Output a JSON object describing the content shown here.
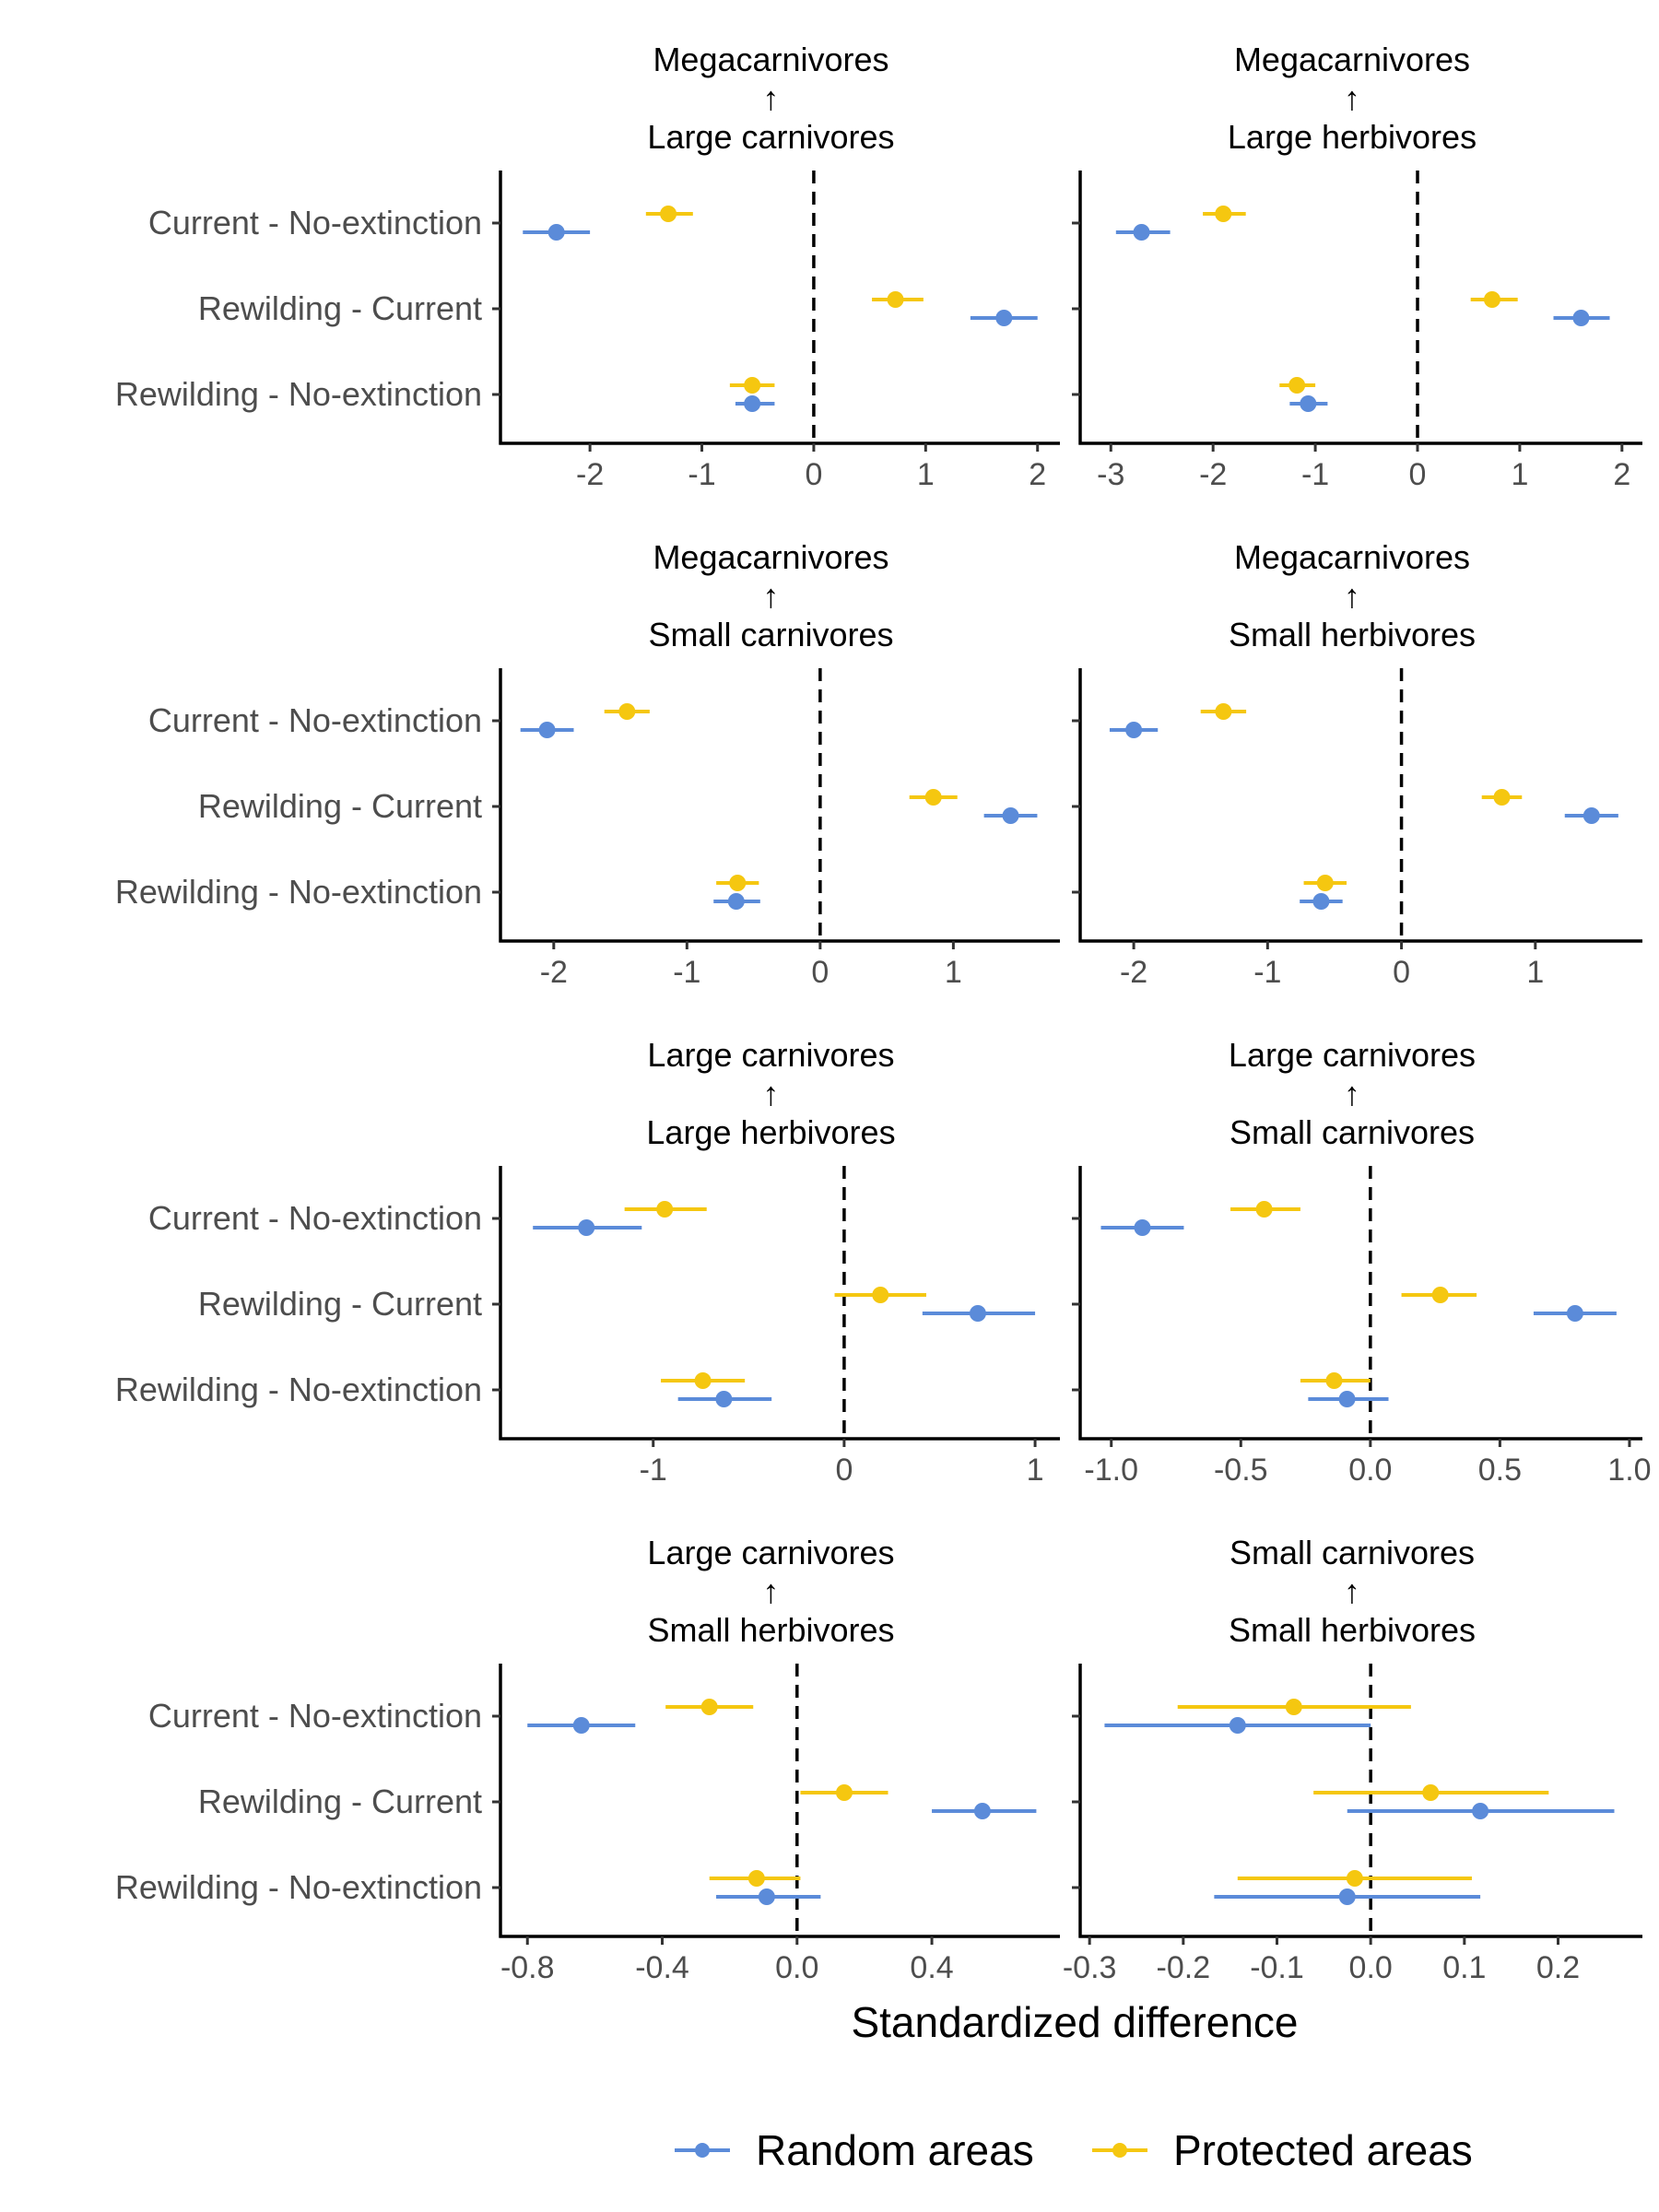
{
  "chart_data": [
    {
      "type": "scatter",
      "title_top": "Megacarnivores",
      "title_arrow": "↑",
      "title_bottom": "Large carnivores",
      "categories": [
        "Current - No-extinction",
        "Rewilding - Current",
        "Rewilding - No-extinction"
      ],
      "xlim": [
        -2.8,
        2.2
      ],
      "xticks": [
        -2,
        -1,
        0,
        1,
        2
      ],
      "series": [
        {
          "name": "Random areas",
          "estimates": [
            -2.3,
            1.7,
            -0.55
          ],
          "ci_low": [
            -2.6,
            1.4,
            -0.7
          ],
          "ci_high": [
            -2.0,
            2.0,
            -0.35
          ]
        },
        {
          "name": "Protected areas",
          "estimates": [
            -1.3,
            0.73,
            -0.55
          ],
          "ci_low": [
            -1.5,
            0.52,
            -0.75
          ],
          "ci_high": [
            -1.08,
            0.98,
            -0.35
          ]
        }
      ]
    },
    {
      "type": "scatter",
      "title_top": "Megacarnivores",
      "title_arrow": "↑",
      "title_bottom": "Large herbivores",
      "categories": [
        "Current - No-extinction",
        "Rewilding - Current",
        "Rewilding - No-extinction"
      ],
      "xlim": [
        -3.3,
        2.2
      ],
      "xticks": [
        -3,
        -2,
        -1,
        0,
        1,
        2
      ],
      "series": [
        {
          "name": "Random areas",
          "estimates": [
            -2.7,
            1.6,
            -1.07
          ],
          "ci_low": [
            -2.95,
            1.33,
            -1.25
          ],
          "ci_high": [
            -2.42,
            1.88,
            -0.88
          ]
        },
        {
          "name": "Protected areas",
          "estimates": [
            -1.9,
            0.73,
            -1.18
          ],
          "ci_low": [
            -2.1,
            0.52,
            -1.35
          ],
          "ci_high": [
            -1.68,
            0.98,
            -1.0
          ]
        }
      ]
    },
    {
      "type": "scatter",
      "title_top": "Megacarnivores",
      "title_arrow": "↑",
      "title_bottom": "Small carnivores",
      "categories": [
        "Current - No-extinction",
        "Rewilding - Current",
        "Rewilding - No-extinction"
      ],
      "xlim": [
        -2.4,
        1.8
      ],
      "xticks": [
        -2,
        -1,
        0,
        1
      ],
      "series": [
        {
          "name": "Random areas",
          "estimates": [
            -2.05,
            1.43,
            -0.63
          ],
          "ci_low": [
            -2.25,
            1.23,
            -0.8
          ],
          "ci_high": [
            -1.85,
            1.63,
            -0.45
          ]
        },
        {
          "name": "Protected areas",
          "estimates": [
            -1.45,
            0.85,
            -0.62
          ],
          "ci_low": [
            -1.62,
            0.67,
            -0.78
          ],
          "ci_high": [
            -1.28,
            1.03,
            -0.46
          ]
        }
      ]
    },
    {
      "type": "scatter",
      "title_top": "Megacarnivores",
      "title_arrow": "↑",
      "title_bottom": "Small herbivores",
      "categories": [
        "Current - No-extinction",
        "Rewilding - Current",
        "Rewilding - No-extinction"
      ],
      "xlim": [
        -2.4,
        1.8
      ],
      "xticks": [
        -2,
        -1,
        0,
        1
      ],
      "series": [
        {
          "name": "Random areas",
          "estimates": [
            -2.0,
            1.42,
            -0.6
          ],
          "ci_low": [
            -2.18,
            1.22,
            -0.76
          ],
          "ci_high": [
            -1.82,
            1.62,
            -0.44
          ]
        },
        {
          "name": "Protected areas",
          "estimates": [
            -1.33,
            0.75,
            -0.57
          ],
          "ci_low": [
            -1.5,
            0.6,
            -0.73
          ],
          "ci_high": [
            -1.16,
            0.9,
            -0.41
          ]
        }
      ]
    },
    {
      "type": "scatter",
      "title_top": "Large carnivores",
      "title_arrow": "↑",
      "title_bottom": "Large herbivores",
      "categories": [
        "Current - No-extinction",
        "Rewilding - Current",
        "Rewilding - No-extinction"
      ],
      "xlim": [
        -1.8,
        1.13
      ],
      "xticks": [
        -1,
        0,
        1
      ],
      "series": [
        {
          "name": "Random areas",
          "estimates": [
            -1.35,
            0.7,
            -0.63
          ],
          "ci_low": [
            -1.63,
            0.41,
            -0.87
          ],
          "ci_high": [
            -1.06,
            1.0,
            -0.38
          ]
        },
        {
          "name": "Protected areas",
          "estimates": [
            -0.94,
            0.19,
            -0.74
          ],
          "ci_low": [
            -1.15,
            -0.05,
            -0.96
          ],
          "ci_high": [
            -0.72,
            0.43,
            -0.52
          ]
        }
      ]
    },
    {
      "type": "scatter",
      "title_top": "Large carnivores",
      "title_arrow": "↑",
      "title_bottom": "Small carnivores",
      "categories": [
        "Current - No-extinction",
        "Rewilding - Current",
        "Rewilding - No-extinction"
      ],
      "xlim": [
        -1.12,
        1.05
      ],
      "xticks": [
        -1.0,
        -0.5,
        0.0,
        0.5,
        1.0
      ],
      "xtick_labels": [
        "-1.0",
        "-0.5",
        "0.0",
        "0.5",
        "1.0"
      ],
      "series": [
        {
          "name": "Random areas",
          "estimates": [
            -0.88,
            0.79,
            -0.09
          ],
          "ci_low": [
            -1.04,
            0.63,
            -0.24
          ],
          "ci_high": [
            -0.72,
            0.95,
            0.07
          ]
        },
        {
          "name": "Protected areas",
          "estimates": [
            -0.41,
            0.27,
            -0.14
          ],
          "ci_low": [
            -0.54,
            0.12,
            -0.27
          ],
          "ci_high": [
            -0.27,
            0.41,
            0.0
          ]
        }
      ]
    },
    {
      "type": "scatter",
      "title_top": "Large carnivores",
      "title_arrow": "↑",
      "title_bottom": "Small herbivores",
      "categories": [
        "Current - No-extinction",
        "Rewilding - Current",
        "Rewilding - No-extinction"
      ],
      "xlim": [
        -0.88,
        0.78
      ],
      "xticks": [
        -0.8,
        -0.4,
        0.0,
        0.4
      ],
      "xtick_labels": [
        "-0.8",
        "-0.4",
        "0.0",
        "0.4"
      ],
      "series": [
        {
          "name": "Random areas",
          "estimates": [
            -0.64,
            0.55,
            -0.09
          ],
          "ci_low": [
            -0.8,
            0.4,
            -0.24
          ],
          "ci_high": [
            -0.48,
            0.71,
            0.07
          ]
        },
        {
          "name": "Protected areas",
          "estimates": [
            -0.26,
            0.14,
            -0.12
          ],
          "ci_low": [
            -0.39,
            0.01,
            -0.26
          ],
          "ci_high": [
            -0.13,
            0.27,
            0.01
          ]
        }
      ]
    },
    {
      "type": "scatter",
      "title_top": "Small carnivores",
      "title_arrow": "↑",
      "title_bottom": "Small herbivores",
      "categories": [
        "Current - No-extinction",
        "Rewilding - Current",
        "Rewilding - No-extinction"
      ],
      "xlim": [
        -0.31,
        0.29
      ],
      "xticks": [
        -0.3,
        -0.2,
        -0.1,
        0.0,
        0.1,
        0.2
      ],
      "xtick_labels": [
        "-0.3",
        "-0.2",
        "-0.1",
        "0.0",
        "0.1",
        "0.2"
      ],
      "series": [
        {
          "name": "Random areas",
          "estimates": [
            -0.142,
            0.117,
            -0.025
          ],
          "ci_low": [
            -0.284,
            -0.025,
            -0.167
          ],
          "ci_high": [
            0.0,
            0.26,
            0.117
          ]
        },
        {
          "name": "Protected areas",
          "estimates": [
            -0.082,
            0.064,
            -0.017
          ],
          "ci_low": [
            -0.206,
            -0.061,
            -0.142
          ],
          "ci_high": [
            0.043,
            0.19,
            0.108
          ]
        }
      ]
    }
  ],
  "x_axis_label": "Standardized difference",
  "legend": {
    "position": "bottom",
    "items": [
      {
        "label": "Random areas",
        "color": "#5b8bd9"
      },
      {
        "label": "Protected areas",
        "color": "#f5c710"
      }
    ]
  },
  "colors": {
    "random": "#5b8bd9",
    "protected": "#f5c710",
    "axis": "#000000",
    "label": "#4d4d4d"
  }
}
